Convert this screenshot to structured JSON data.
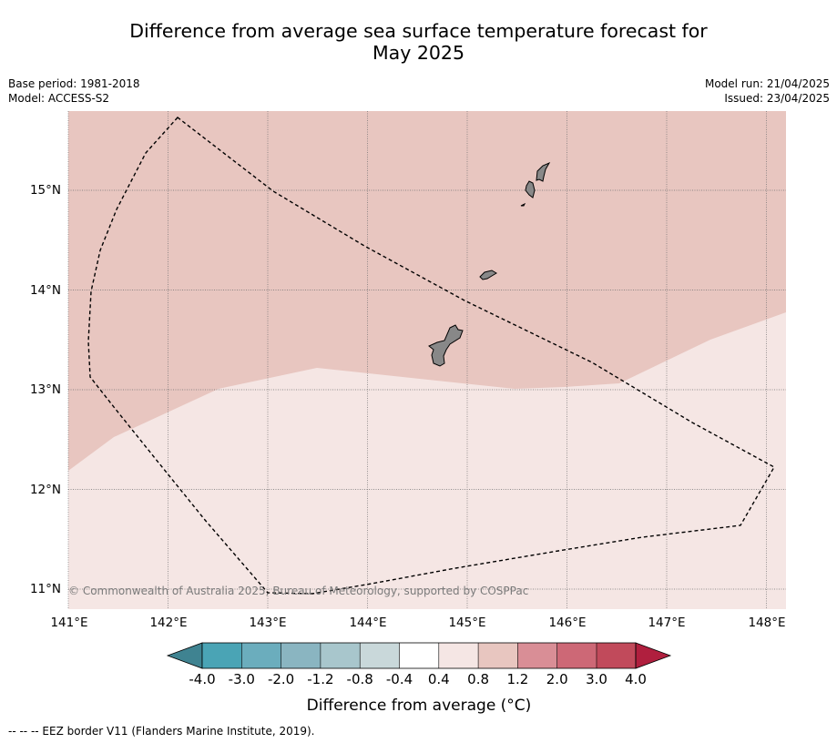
{
  "title_line1": "Difference from average sea surface temperature forecast for",
  "title_line2": "May 2025",
  "base_period": "Base period: 1981-2018",
  "model": "Model: ACCESS-S2",
  "model_run": "Model run: 21/04/2025",
  "issued": "Issued: 23/04/2025",
  "copyright": "© Commonwealth of Australia 2025, Bureau of Meteorology, supported by COSPPac",
  "legend_note": "-- -- -- EEZ border V11 (Flanders Marine Institute, 2019).",
  "lat_labels": [
    "15°N",
    "14°N",
    "13°N",
    "12°N",
    "11°N"
  ],
  "lon_labels": [
    "141°E",
    "142°E",
    "143°E",
    "144°E",
    "145°E",
    "146°E",
    "147°E",
    "148°E"
  ],
  "colorbar": {
    "label": "Difference from average (°C)",
    "ticks": [
      "-4.0",
      "-3.0",
      "-2.0",
      "-1.2",
      "-0.8",
      "-0.4",
      "0.4",
      "0.8",
      "1.2",
      "2.0",
      "3.0",
      "4.0"
    ],
    "colors": {
      "under": "#3f8391",
      "bins": [
        "#4aa4b5",
        "#6badbd",
        "#8ab5c1",
        "#a8c6cc",
        "#c9d8da",
        "#ffffff",
        "#f5e6e4",
        "#e8c6c0",
        "#d98e96",
        "#cd6876",
        "#c14a5b"
      ],
      "over": "#b01f3e"
    }
  },
  "map_data": {
    "extent_lon": [
      141.0,
      148.2
    ],
    "extent_lat": [
      10.8,
      15.8
    ],
    "fill_upper_range": "0.8 to 1.2",
    "fill_lower_range": "0.4 to 0.8",
    "colors": {
      "upper": "#e8c6c0",
      "lower": "#f5e6e4",
      "land": "#888888"
    },
    "islands": [
      "Guam",
      "Rota",
      "Tinian",
      "Saipan"
    ]
  }
}
